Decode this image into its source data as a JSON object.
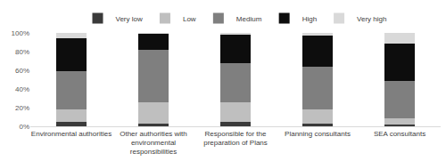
{
  "chart_data": {
    "type": "bar",
    "stacked": true,
    "legend": "top",
    "grid": false,
    "categories": [
      "Environmental authorities",
      "Other authorities with environmental responsibilities",
      "Responsible for the preparation of Plans",
      "Planning consultants",
      "SEA consultants"
    ],
    "series": [
      {
        "name": "Very low",
        "color": "#3a3a3a",
        "values": [
          5,
          3,
          5,
          3,
          2
        ]
      },
      {
        "name": "Low",
        "color": "#bfbfbf",
        "values": [
          13,
          23,
          21,
          15,
          7
        ]
      },
      {
        "name": "Medium",
        "color": "#7f7f7f",
        "values": [
          41,
          56,
          42,
          46,
          40
        ]
      },
      {
        "name": "High",
        "color": "#0d0d0d",
        "values": [
          35,
          17,
          30,
          33,
          40
        ]
      },
      {
        "name": "Very high",
        "color": "#d9d9d9",
        "values": [
          6,
          1,
          2,
          3,
          11
        ]
      }
    ],
    "ylim": [
      0,
      100
    ],
    "yticks": [
      {
        "value": 0,
        "label": "0%"
      },
      {
        "value": 20,
        "label": "20%"
      },
      {
        "value": 40,
        "label": "40%"
      },
      {
        "value": 60,
        "label": "60%"
      },
      {
        "value": 80,
        "label": "80%"
      },
      {
        "value": 100,
        "label": "100%"
      }
    ]
  }
}
